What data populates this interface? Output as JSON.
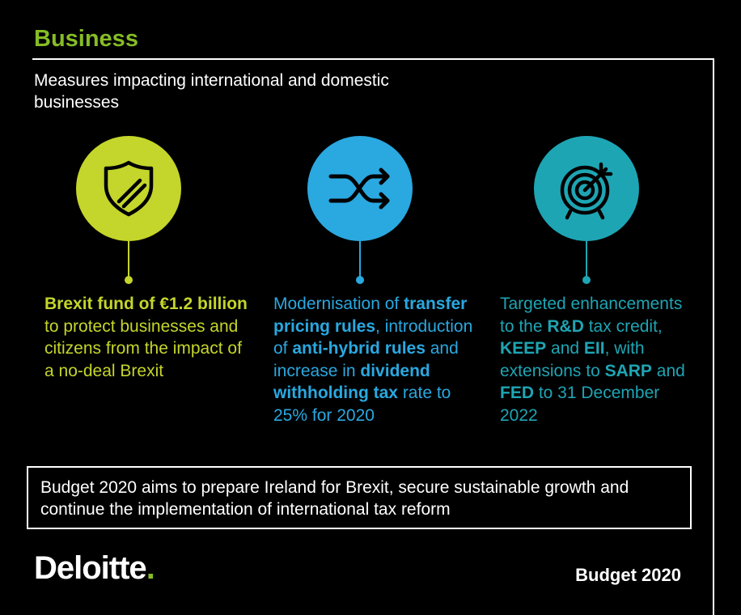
{
  "header": {
    "title": "Business",
    "subtitle": "Measures impacting international and domestic businesses"
  },
  "columns": [
    {
      "icon": "shield-icon",
      "color": "#c4d52b",
      "parts": [
        {
          "text": "Brexit fund of €1.2 billion",
          "bold": true
        },
        {
          "text": " to protect businesses and citizens from the impact of a no-deal Brexit",
          "bold": false
        }
      ]
    },
    {
      "icon": "shuffle-icon",
      "color": "#2aa8e0",
      "parts": [
        {
          "text": "Modernisation of ",
          "bold": false
        },
        {
          "text": "transfer pricing rules",
          "bold": true
        },
        {
          "text": ", introduction of ",
          "bold": false
        },
        {
          "text": "anti-hybrid rules",
          "bold": true
        },
        {
          "text": " and increase in ",
          "bold": false
        },
        {
          "text": "dividend withholding tax",
          "bold": true
        },
        {
          "text": " rate to 25% for 2020",
          "bold": false
        }
      ]
    },
    {
      "icon": "target-icon",
      "color": "#1ea5b4",
      "parts": [
        {
          "text": "Targeted enhancements to the ",
          "bold": false
        },
        {
          "text": "R&D",
          "bold": true
        },
        {
          "text": " tax credit, ",
          "bold": false
        },
        {
          "text": "KEEP",
          "bold": true
        },
        {
          "text": " and ",
          "bold": false
        },
        {
          "text": "EII",
          "bold": true
        },
        {
          "text": ", with extensions to ",
          "bold": false
        },
        {
          "text": "SARP",
          "bold": true
        },
        {
          "text": " and ",
          "bold": false
        },
        {
          "text": "FED",
          "bold": true
        },
        {
          "text": " to 31 December 2022",
          "bold": false
        }
      ]
    }
  ],
  "callout": {
    "text": "Budget 2020 aims to prepare Ireland for Brexit, secure sustainable growth and continue the implementation of international tax reform"
  },
  "footer": {
    "logo_text": "Deloitte",
    "logo_dot": ".",
    "label": "Budget 2020"
  },
  "colors": {
    "brand_green": "#86bc25",
    "lime": "#c4d52b",
    "blue": "#2aa8e0",
    "teal": "#1ea5b4"
  }
}
